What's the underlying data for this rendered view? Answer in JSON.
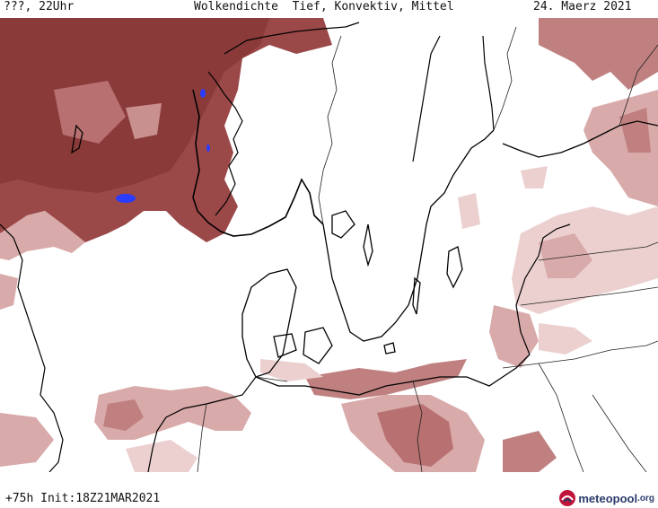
{
  "header": {
    "left": "???, 22Uhr",
    "title": "Wolkendichte  Tief, Konvektiv, Mittel",
    "date": "24. Maerz 2021"
  },
  "footer": {
    "run": "+75h Init:18Z21MAR2021",
    "brand_name": "meteopool",
    "brand_tld": ".org",
    "brand_icon": "meteopool-logo-icon"
  },
  "map": {
    "cloud_colors": [
      "#8b3a3a",
      "#a55a5a",
      "#c08080",
      "#d9aaaa",
      "#ecd0d0"
    ],
    "convective_color": "#2a3cff",
    "coast_color": "#000000",
    "border_color": "#222222"
  }
}
